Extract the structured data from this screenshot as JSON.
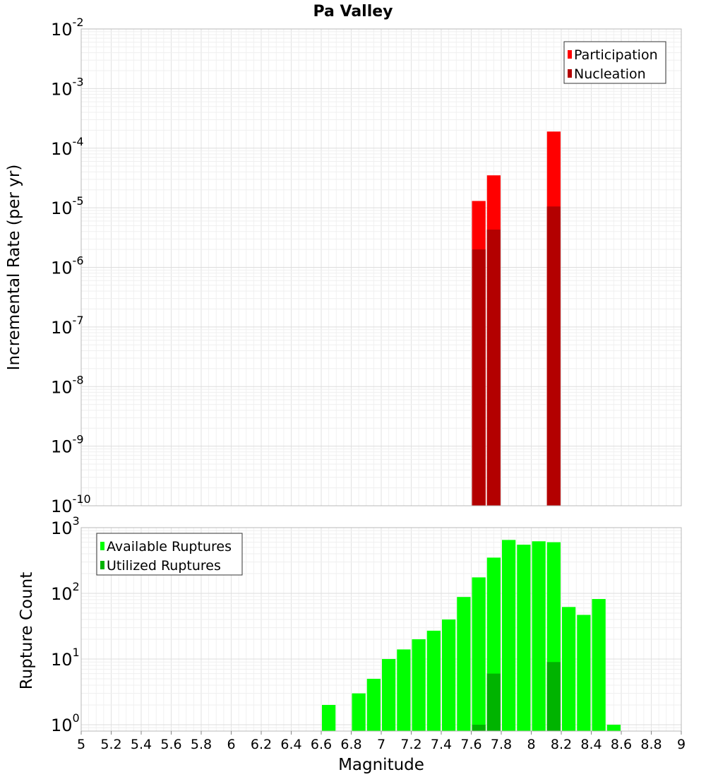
{
  "chart_data": [
    {
      "type": "bar",
      "title": "Pa Valley",
      "xlabel": "",
      "ylabel": "Incremental Rate (per yr)",
      "yscale": "log",
      "ylim": [
        1e-10,
        0.01
      ],
      "xlim": [
        5,
        9
      ],
      "ytick_bases": [
        "10",
        "10",
        "10",
        "10",
        "10",
        "10",
        "10",
        "10",
        "10"
      ],
      "ytick_exps": [
        "-10",
        "-9",
        "-8",
        "-7",
        "-6",
        "-5",
        "-4",
        "-3",
        "-2"
      ],
      "ytick_values": [
        1e-10,
        1e-09,
        1e-08,
        1e-07,
        1e-06,
        1e-05,
        0.0001,
        0.001,
        0.01
      ],
      "legend_position": "top-right",
      "grid": true,
      "series": [
        {
          "name": "Participation",
          "color": "#ff0000",
          "x": [
            7.65,
            7.75,
            8.15
          ],
          "values": [
            1.3e-05,
            3.5e-05,
            0.00019
          ]
        },
        {
          "name": "Nucleation",
          "color": "#b30000",
          "x": [
            7.65,
            7.75,
            8.15
          ],
          "values": [
            2e-06,
            4.3e-06,
            1.05e-05
          ]
        }
      ]
    },
    {
      "type": "bar",
      "title": "",
      "xlabel": "Magnitude",
      "ylabel": "Rupture Count",
      "yscale": "log",
      "ylim": [
        0.8,
        1000
      ],
      "xlim": [
        5,
        9
      ],
      "xticks": [
        "5",
        "5.2",
        "5.4",
        "5.6",
        "5.8",
        "6",
        "6.2",
        "6.4",
        "6.6",
        "6.8",
        "7",
        "7.2",
        "7.4",
        "7.6",
        "7.8",
        "8",
        "8.2",
        "8.4",
        "8.6",
        "8.8",
        "9"
      ],
      "xtick_values": [
        5,
        5.2,
        5.4,
        5.6,
        5.8,
        6,
        6.2,
        6.4,
        6.6,
        6.8,
        7,
        7.2,
        7.4,
        7.6,
        7.8,
        8,
        8.2,
        8.4,
        8.6,
        8.8,
        9
      ],
      "ytick_bases": [
        "10",
        "10",
        "10",
        "10"
      ],
      "ytick_exps": [
        "0",
        "1",
        "2",
        "3"
      ],
      "ytick_values": [
        1,
        10,
        100,
        1000
      ],
      "legend_position": "top-left",
      "grid": true,
      "series": [
        {
          "name": "Available Ruptures",
          "color": "#00ff00",
          "x": [
            6.65,
            6.85,
            6.95,
            7.05,
            7.15,
            7.25,
            7.35,
            7.45,
            7.55,
            7.65,
            7.75,
            7.85,
            7.95,
            8.05,
            8.15,
            8.25,
            8.35,
            8.45,
            8.55
          ],
          "values": [
            2,
            3,
            5,
            10,
            14,
            20,
            27,
            40,
            88,
            175,
            350,
            650,
            550,
            620,
            600,
            62,
            47,
            82,
            1
          ]
        },
        {
          "name": "Utilized Ruptures",
          "color": "#00b300",
          "x": [
            7.65,
            7.75,
            8.15
          ],
          "values": [
            1,
            6,
            9
          ]
        }
      ]
    }
  ]
}
